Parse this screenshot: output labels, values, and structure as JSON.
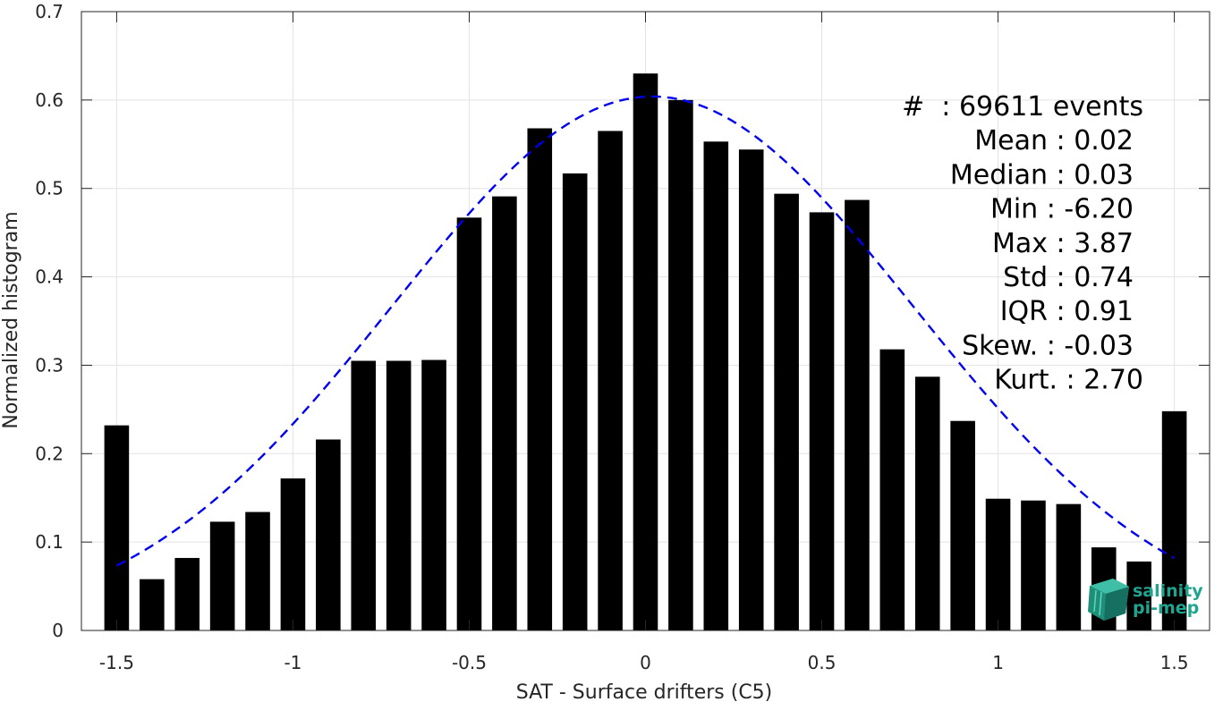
{
  "chart_data": {
    "type": "bar",
    "xlabel": "SAT - Surface drifters (C5)",
    "ylabel": "Normalized histogram",
    "xlim": [
      -1.6,
      1.6
    ],
    "ylim": [
      0,
      0.7
    ],
    "grid": true,
    "x_ticks": [
      -1.5,
      -1,
      -0.5,
      0,
      0.5,
      1,
      1.5
    ],
    "x_tick_labels": [
      "-1.5",
      "-1",
      "-0.5",
      "0",
      "0.5",
      "1",
      "1.5"
    ],
    "y_ticks": [
      0,
      0.1,
      0.2,
      0.3,
      0.4,
      0.5,
      0.6,
      0.7
    ],
    "y_tick_labels": [
      "0",
      "0.1",
      "0.2",
      "0.3",
      "0.4",
      "0.5",
      "0.6",
      "0.7"
    ],
    "bar_width": 0.07,
    "bar_color": "#000000",
    "x": [
      -1.5,
      -1.4,
      -1.3,
      -1.2,
      -1.1,
      -1.0,
      -0.9,
      -0.8,
      -0.7,
      -0.6,
      -0.5,
      -0.4,
      -0.3,
      -0.2,
      -0.1,
      0.0,
      0.1,
      0.2,
      0.3,
      0.4,
      0.5,
      0.6,
      0.7,
      0.8,
      0.9,
      1.0,
      1.1,
      1.2,
      1.3,
      1.4,
      1.5
    ],
    "values": [
      0.232,
      0.058,
      0.082,
      0.123,
      0.134,
      0.172,
      0.216,
      0.305,
      0.305,
      0.306,
      0.467,
      0.491,
      0.568,
      0.517,
      0.565,
      0.63,
      0.6,
      0.553,
      0.544,
      0.494,
      0.473,
      0.487,
      0.318,
      0.287,
      0.237,
      0.149,
      0.147,
      0.143,
      0.094,
      0.078,
      0.248
    ],
    "fit_curve": {
      "style": "dashed",
      "color": "#0000ee",
      "mean": 0.02,
      "std": 0.74,
      "peak": 0.604,
      "x_range": [
        -1.5,
        1.5
      ]
    },
    "stats_box": {
      "placement": "top-right",
      "lines": [
        "#  : 69611 events",
        "Mean : 0.02",
        "Median : 0.03",
        "Min : -6.20",
        "Max : 3.87",
        "Std : 0.74",
        "IQR : 0.91",
        "Skew. : -0.03",
        "Kurt. : 2.70"
      ]
    }
  },
  "logo": {
    "line1": "salinity",
    "line2": "pi-mep",
    "color": "#1fa58f"
  }
}
